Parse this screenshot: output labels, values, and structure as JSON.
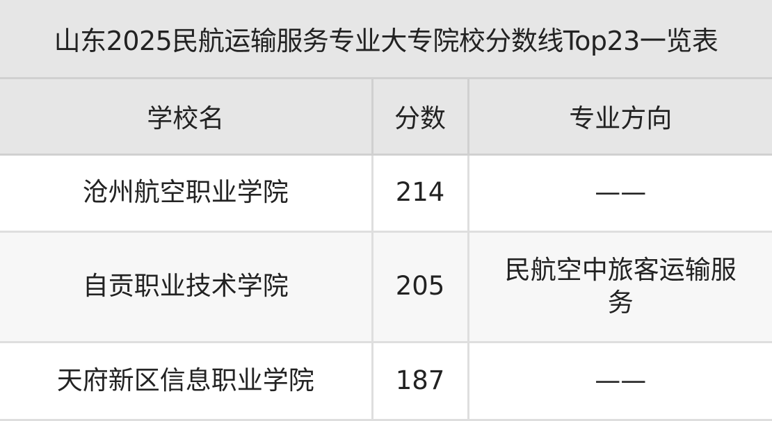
{
  "title": "山东2025民航运输服务专业大专院校分数线Top23一览表",
  "columns": [
    "学校名",
    "分数",
    "专业方向"
  ],
  "rows": [
    {
      "school": "沧州航空职业学院",
      "score": "214",
      "major": "——"
    },
    {
      "school": "自贡职业技术学院",
      "score": "205",
      "major": "民航空中旅客运输服务"
    },
    {
      "school": "天府新区信息职业学院",
      "score": "187",
      "major": "——"
    }
  ],
  "colors": {
    "header_bg": "#e6e6e6",
    "alt_row_bg": "#f7f7f7",
    "border": "#dedede"
  }
}
